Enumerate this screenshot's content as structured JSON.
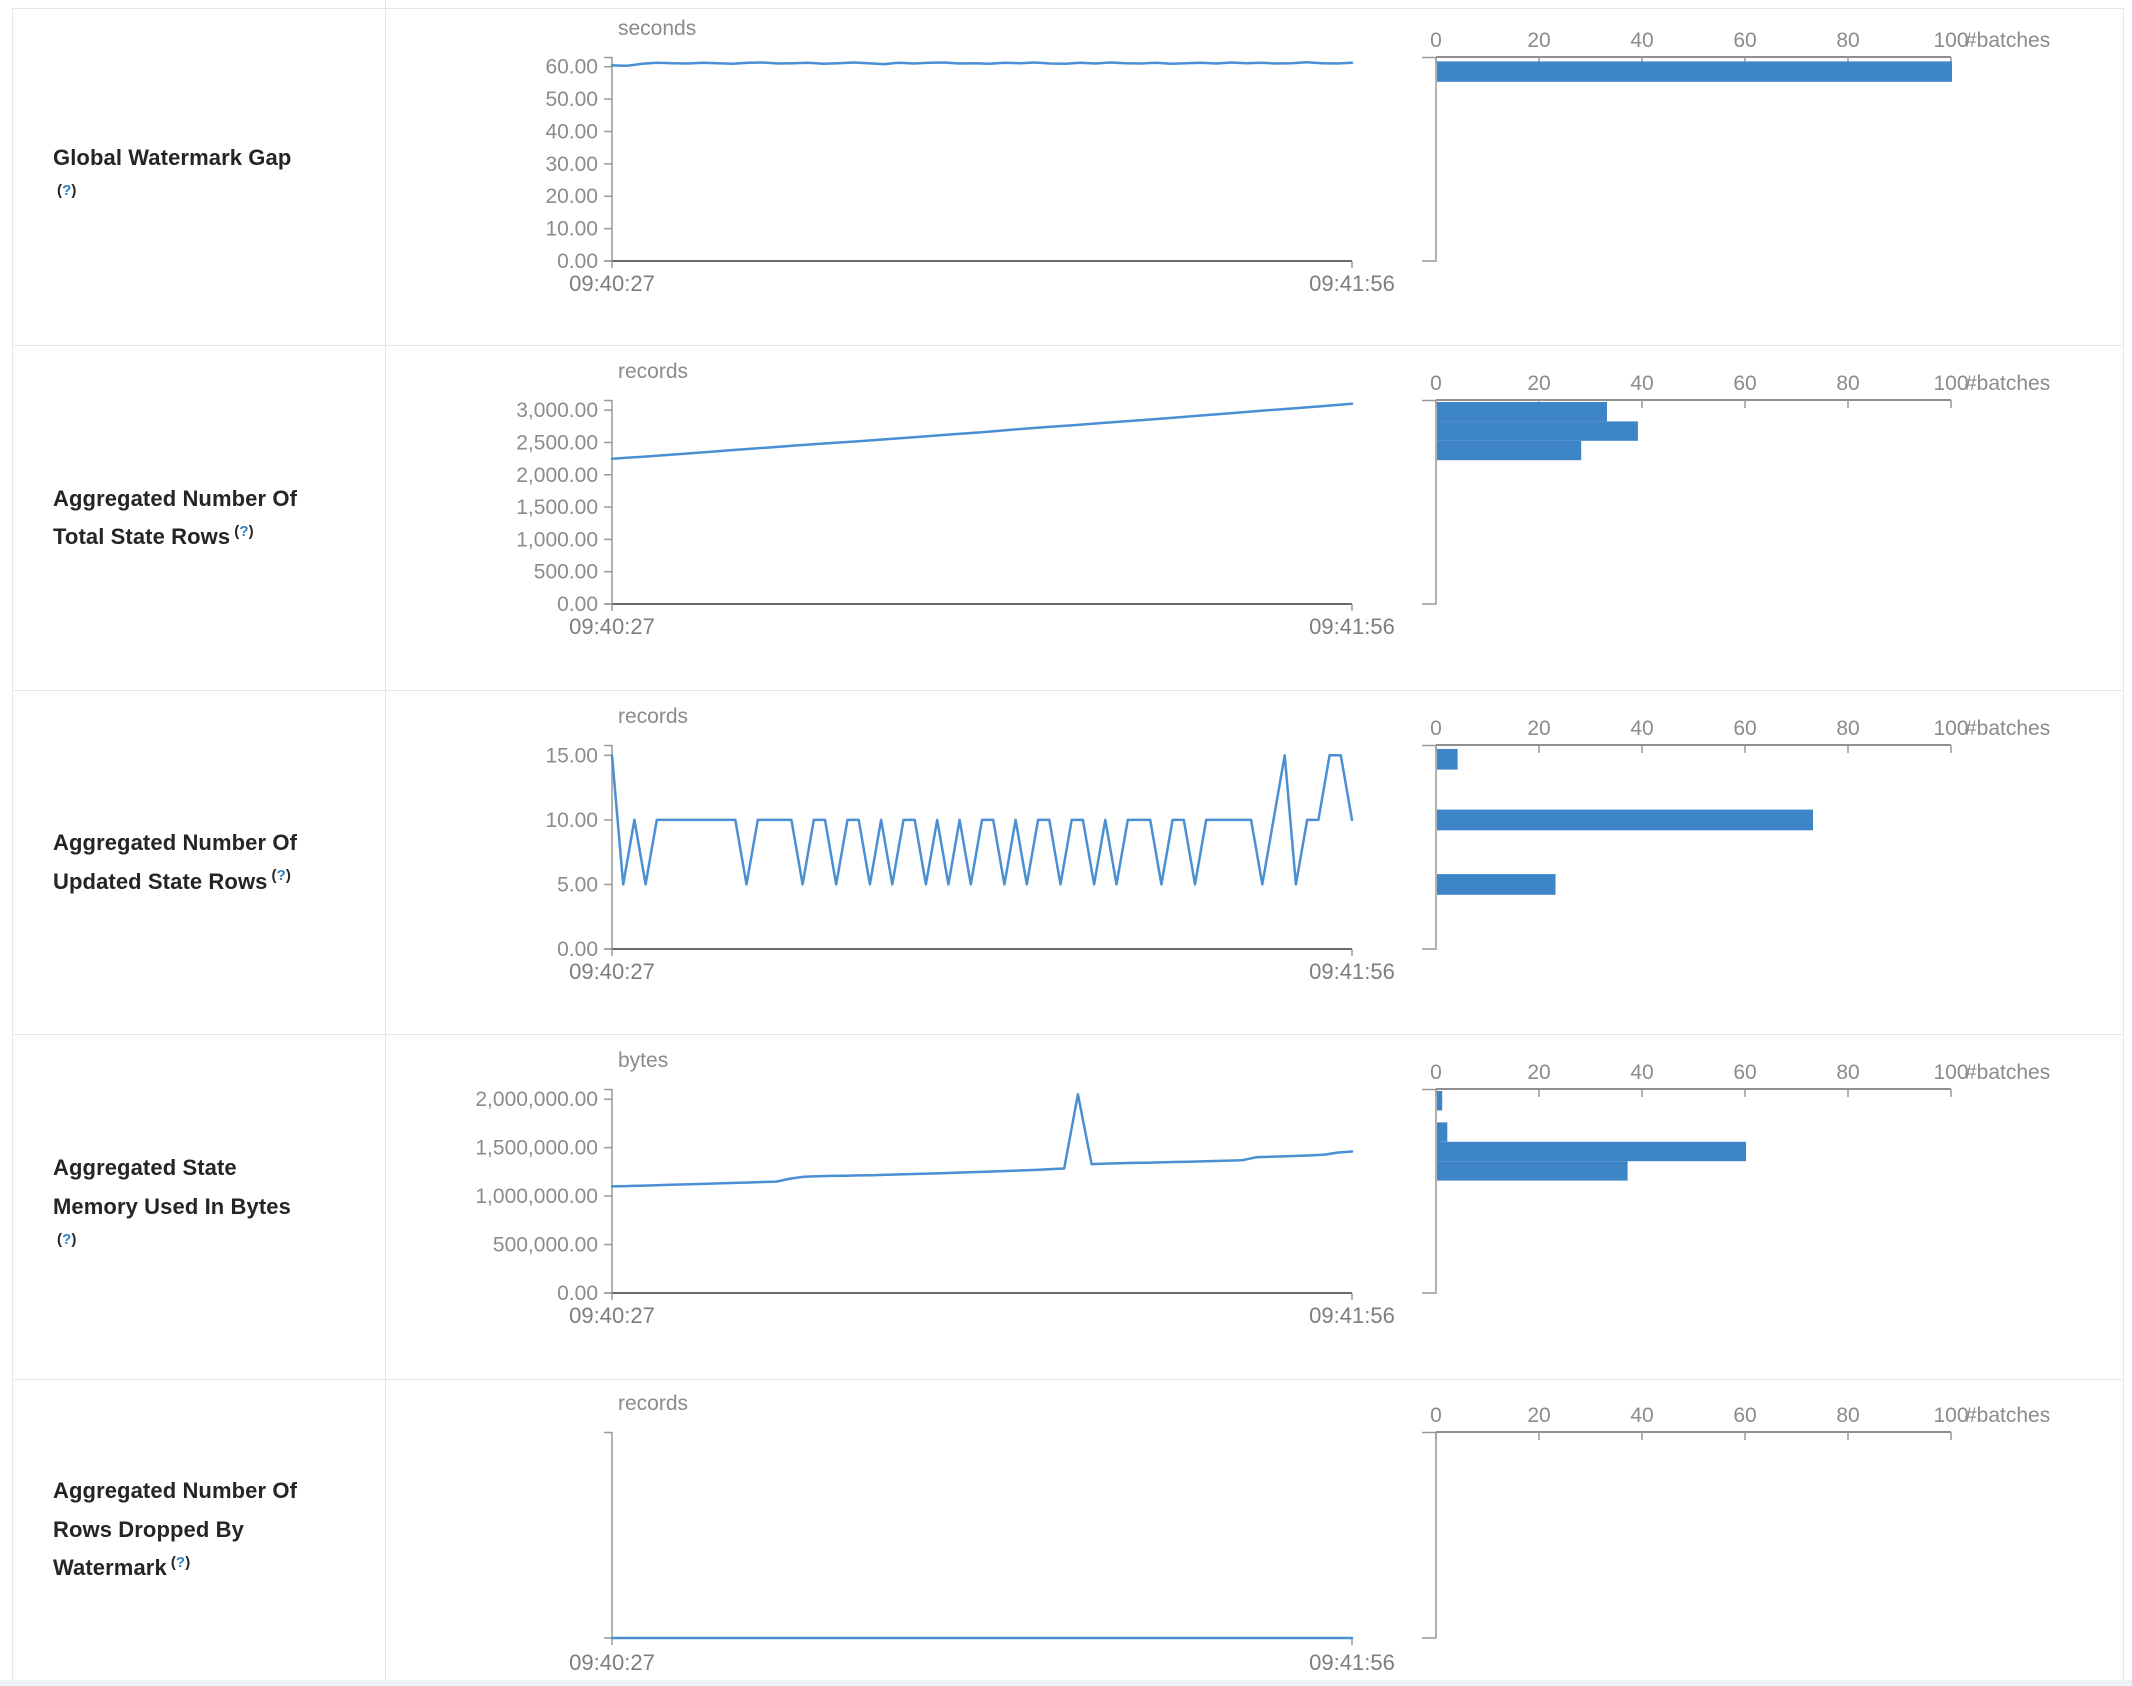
{
  "colors": {
    "line_blue": "#4a8fd3",
    "bar_blue": "#3d85c6",
    "axis_gray": "#999999",
    "axis_dark": "#6a6a6a",
    "tick_text": "#8b8b8b",
    "label_text": "#252525",
    "help_blue": "#2e7fc0",
    "border": "#e4e6e9"
  },
  "hist_axis": {
    "tick_labels": [
      "0",
      "20",
      "40",
      "60",
      "80",
      "100"
    ],
    "tick_values": [
      0,
      20,
      40,
      60,
      80,
      100
    ],
    "label": "#batches",
    "max": 100
  },
  "rows": [
    {
      "title": "Global Watermark Gap",
      "title_lines": [
        "Global Watermark Gap",
        ""
      ],
      "help_open": "(",
      "help_q": "?",
      "help_close": ")",
      "unit": "seconds",
      "x_start": "09:40:27",
      "x_end": "09:41:56",
      "show_y_ticks": true,
      "show_x_line": true,
      "y_domain_max": 63,
      "y_ticks": [
        {
          "label": "60.00",
          "v": 60
        },
        {
          "label": "50.00",
          "v": 50
        },
        {
          "label": "40.00",
          "v": 40
        },
        {
          "label": "30.00",
          "v": 30
        },
        {
          "label": "20.00",
          "v": 20
        },
        {
          "label": "10.00",
          "v": 10
        },
        {
          "label": "0.00",
          "v": 0
        }
      ],
      "chart_data": {
        "type": "line",
        "timeline": [
          60.4,
          60.3,
          60.9,
          61.2,
          61.1,
          61.0,
          61.2,
          61.1,
          60.9,
          61.2,
          61.3,
          61.0,
          61.1,
          61.2,
          60.9,
          61.1,
          61.3,
          61.1,
          60.8,
          61.2,
          61.0,
          61.2,
          61.3,
          61.0,
          61.1,
          60.9,
          61.2,
          61.1,
          61.3,
          61.0,
          60.9,
          61.2,
          61.0,
          61.3,
          61.1,
          61.0,
          61.2,
          60.9,
          61.1,
          61.2,
          61.0,
          61.3,
          61.1,
          61.2,
          61.0,
          61.1,
          61.4,
          61.1,
          61.0,
          61.2
        ],
        "hist_bin_size": 6.3,
        "hist_bins": [
          {
            "v": 58.5,
            "count": 100
          }
        ]
      }
    },
    {
      "title": "Aggregated Number Of Total State Rows",
      "title_lines": [
        "Aggregated Number Of",
        "Total State Rows"
      ],
      "help_open": "(",
      "help_q": "?",
      "help_close": ")",
      "unit": "records",
      "x_start": "09:40:27",
      "x_end": "09:41:56",
      "show_y_ticks": true,
      "show_x_line": true,
      "y_domain_max": 3158,
      "y_ticks": [
        {
          "label": "3,000.00",
          "v": 3000
        },
        {
          "label": "2,500.00",
          "v": 2500
        },
        {
          "label": "2,000.00",
          "v": 2000
        },
        {
          "label": "1,500.00",
          "v": 1500
        },
        {
          "label": "1,000.00",
          "v": 1000
        },
        {
          "label": "500.00",
          "v": 500
        },
        {
          "label": "0.00",
          "v": 0
        }
      ],
      "chart_data": {
        "type": "line",
        "timeline": [
          2250,
          2280,
          2315,
          2350,
          2385,
          2420,
          2455,
          2490,
          2520,
          2555,
          2590,
          2625,
          2660,
          2700,
          2735,
          2770,
          2805,
          2840,
          2875,
          2915,
          2950,
          2990,
          3025,
          3060,
          3100
        ],
        "hist_bin_size": 300,
        "hist_bins": [
          {
            "v": 2977,
            "count": 33
          },
          {
            "v": 2677,
            "count": 39
          },
          {
            "v": 2377,
            "count": 28
          }
        ]
      }
    },
    {
      "title": "Aggregated Number Of Updated State Rows",
      "title_lines": [
        "Aggregated Number Of",
        "Updated State Rows"
      ],
      "help_open": "(",
      "help_q": "?",
      "help_close": ")",
      "unit": "records",
      "x_start": "09:40:27",
      "x_end": "09:41:56",
      "show_y_ticks": true,
      "show_x_line": true,
      "y_domain_max": 15.8,
      "y_ticks": [
        {
          "label": "15.00",
          "v": 15
        },
        {
          "label": "10.00",
          "v": 10
        },
        {
          "label": "5.00",
          "v": 5
        },
        {
          "label": "0.00",
          "v": 0
        }
      ],
      "chart_data": {
        "type": "line",
        "timeline": [
          15,
          5,
          10,
          5,
          10,
          10,
          10,
          10,
          10,
          10,
          10,
          10,
          5,
          10,
          10,
          10,
          10,
          5,
          10,
          10,
          5,
          10,
          10,
          5,
          10,
          5,
          10,
          10,
          5,
          10,
          5,
          10,
          5,
          10,
          10,
          5,
          10,
          5,
          10,
          10,
          5,
          10,
          10,
          5,
          10,
          5,
          10,
          10,
          10,
          5,
          10,
          10,
          5,
          10,
          10,
          10,
          10,
          10,
          5,
          10,
          15,
          5,
          10,
          10,
          15,
          15,
          10
        ],
        "hist_bin_size": 1.6,
        "hist_bins": [
          {
            "v": 14.7,
            "count": 4
          },
          {
            "v": 10,
            "count": 73
          },
          {
            "v": 5,
            "count": 23
          }
        ]
      }
    },
    {
      "title": "Aggregated State Memory Used In Bytes",
      "title_lines": [
        "Aggregated State",
        "Memory Used In Bytes",
        ""
      ],
      "help_open": "(",
      "help_q": "?",
      "help_close": ")",
      "unit": "bytes",
      "x_start": "09:40:27",
      "x_end": "09:41:56",
      "show_y_ticks": true,
      "show_x_line": true,
      "y_domain_max": 2105000,
      "y_ticks": [
        {
          "label": "2,000,000.00",
          "v": 2000000
        },
        {
          "label": "1,500,000.00",
          "v": 1500000
        },
        {
          "label": "1,000,000.00",
          "v": 1000000
        },
        {
          "label": "500,000.00",
          "v": 500000
        },
        {
          "label": "0.00",
          "v": 0
        }
      ],
      "chart_data": {
        "type": "line",
        "timeline": [
          1100000,
          1103000,
          1107000,
          1110000,
          1115000,
          1120000,
          1124000,
          1128000,
          1132000,
          1136000,
          1140000,
          1145000,
          1150000,
          1180000,
          1200000,
          1205000,
          1208000,
          1210000,
          1213000,
          1216000,
          1220000,
          1224000,
          1228000,
          1232000,
          1236000,
          1240000,
          1245000,
          1250000,
          1255000,
          1260000,
          1265000,
          1270000,
          1278000,
          1285000,
          2050000,
          1330000,
          1335000,
          1338000,
          1342000,
          1345000,
          1348000,
          1352000,
          1355000,
          1358000,
          1362000,
          1366000,
          1370000,
          1400000,
          1405000,
          1410000,
          1415000,
          1420000,
          1428000,
          1450000,
          1460000
        ],
        "hist_bin_size": 200000,
        "hist_bins": [
          {
            "v": 1984000,
            "count": 1
          },
          {
            "v": 1660000,
            "count": 2
          },
          {
            "v": 1460000,
            "count": 60
          },
          {
            "v": 1260000,
            "count": 37
          }
        ]
      }
    },
    {
      "title": "Aggregated Number Of Rows Dropped By Watermark",
      "title_lines": [
        "Aggregated Number Of",
        "Rows Dropped By",
        "Watermark"
      ],
      "help_open": "(",
      "help_q": "?",
      "help_close": ")",
      "unit": "records",
      "x_start": "09:40:27",
      "x_end": "09:41:56",
      "show_y_ticks": false,
      "show_x_line": false,
      "y_domain_max": 1,
      "y_ticks": [],
      "chart_data": {
        "type": "line",
        "timeline": [
          0,
          0
        ],
        "hist_bin_size": 0,
        "hist_bins": []
      }
    }
  ]
}
